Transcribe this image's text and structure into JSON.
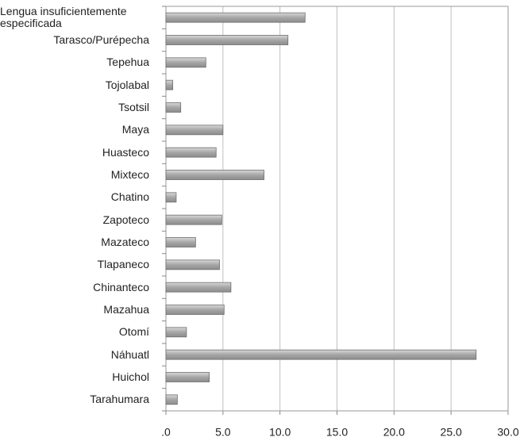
{
  "chart_data": {
    "type": "bar",
    "orientation": "horizontal",
    "categories": [
      "Lengua insuficientemente especificada",
      "Tarasco/Purépecha",
      "Tepehua",
      "Tojolabal",
      "Tsotsil",
      "Maya",
      "Huasteco",
      "Mixteco",
      "Chatino",
      "Zapoteco",
      "Mazateco",
      "Tlapaneco",
      "Chinanteco",
      "Mazahua",
      "Otomí",
      "Náhuatl",
      "Huichol",
      "Tarahumara"
    ],
    "values": [
      12.2,
      10.7,
      3.5,
      0.6,
      1.3,
      5.0,
      4.4,
      8.6,
      0.9,
      4.9,
      2.6,
      4.7,
      5.7,
      5.1,
      1.8,
      27.2,
      3.8,
      1.0
    ],
    "color": "#a6a6a6",
    "xlim": [
      0,
      30
    ],
    "xticks": [
      {
        "value": 0,
        "label": ".0"
      },
      {
        "value": 5,
        "label": "5.0"
      },
      {
        "value": 10,
        "label": "10.0"
      },
      {
        "value": 15,
        "label": "15.0"
      },
      {
        "value": 20,
        "label": "20.0"
      },
      {
        "value": 25,
        "label": "25.0"
      },
      {
        "value": 30,
        "label": "30.0"
      }
    ],
    "grid": true
  }
}
